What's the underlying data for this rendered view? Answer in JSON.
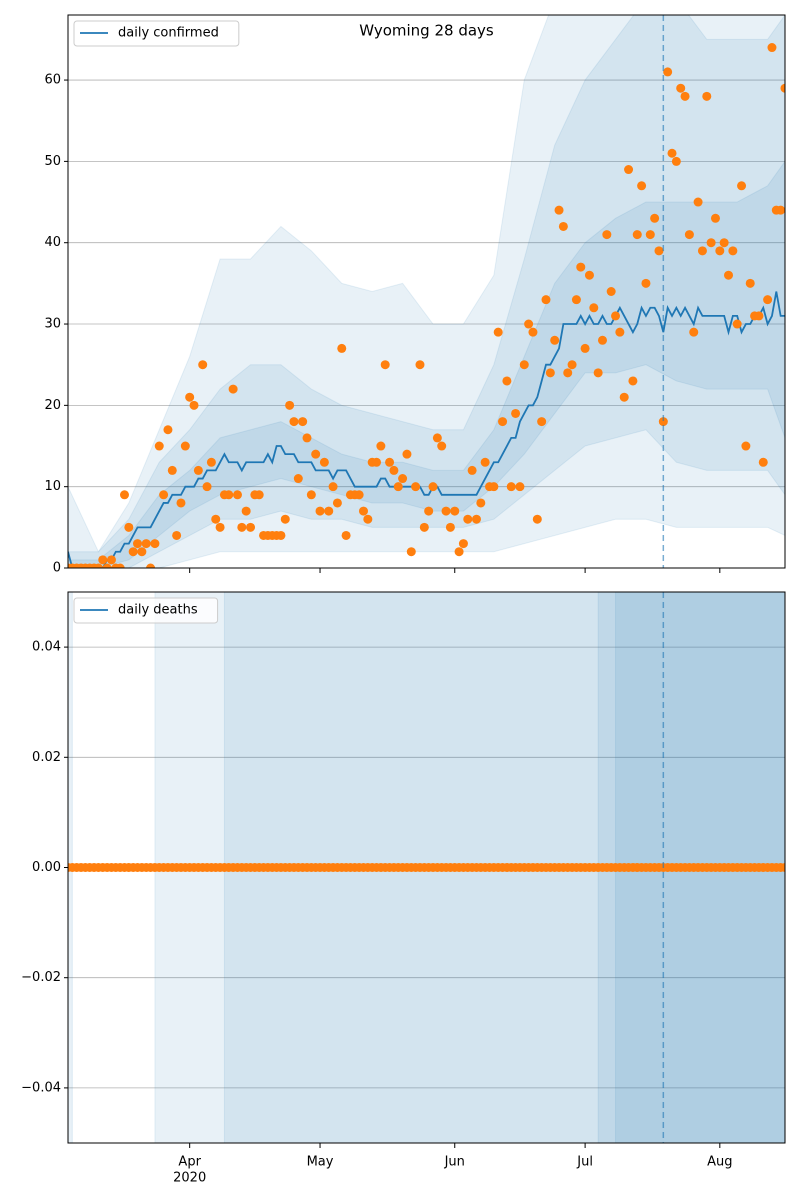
{
  "chart_data": [
    {
      "type": "line",
      "title": "Wyoming 28 days",
      "xlim": [
        0,
        165
      ],
      "ylim": [
        0,
        68
      ],
      "yticks": [
        0,
        10,
        20,
        30,
        40,
        50,
        60
      ],
      "grid": true,
      "legend": "upper left",
      "vline": 137,
      "series": [
        {
          "name": "daily confirmed",
          "color": "#1f77b4",
          "values": [
            2,
            0,
            0,
            0,
            0,
            0,
            0,
            0,
            0,
            1,
            1,
            2,
            2,
            3,
            3,
            4,
            5,
            5,
            5,
            5,
            6,
            7,
            8,
            8,
            9,
            9,
            9,
            10,
            10,
            10,
            11,
            11,
            12,
            12,
            12,
            13,
            14,
            13,
            13,
            13,
            12,
            13,
            13,
            13,
            13,
            13,
            14,
            13,
            15,
            15,
            14,
            14,
            14,
            13,
            13,
            13,
            13,
            12,
            12,
            12,
            12,
            11,
            12,
            12,
            12,
            11,
            10,
            10,
            10,
            10,
            10,
            10,
            11,
            11,
            10,
            10,
            10,
            10,
            10,
            10,
            10,
            10,
            9,
            9,
            10,
            10,
            9,
            9,
            9,
            9,
            9,
            9,
            9,
            9,
            9,
            10,
            11,
            12,
            13,
            13,
            14,
            15,
            16,
            16,
            18,
            19,
            20,
            20,
            21,
            23,
            25,
            25,
            26,
            27,
            30,
            30,
            30,
            30,
            31,
            30,
            31,
            30,
            30,
            31,
            30,
            30,
            31,
            32,
            31,
            30,
            29,
            30,
            32,
            31,
            32,
            32,
            31,
            29,
            32,
            31,
            32,
            31,
            32,
            31,
            30,
            32,
            31,
            31,
            31,
            31,
            31,
            31,
            29,
            31,
            31,
            29,
            30,
            30,
            31,
            31,
            32,
            30,
            31,
            34,
            31,
            31
          ]
        }
      ],
      "points": {
        "color": "#ff7f0e",
        "values": [
          0,
          0,
          0,
          0,
          0,
          0,
          0,
          0,
          1,
          0,
          1,
          0,
          0,
          9,
          5,
          2,
          3,
          2,
          3,
          0,
          3,
          15,
          9,
          17,
          12,
          4,
          8,
          15,
          21,
          20,
          12,
          25,
          10,
          13,
          6,
          5,
          9,
          9,
          22,
          9,
          5,
          7,
          5,
          9,
          9,
          4,
          4,
          4,
          4,
          4,
          6,
          20,
          18,
          11,
          18,
          16,
          9,
          14,
          7,
          13,
          7,
          10,
          8,
          27,
          4,
          9,
          9,
          9,
          7,
          6,
          13,
          13,
          15,
          25,
          13,
          12,
          10,
          11,
          14,
          2,
          10,
          25,
          5,
          7,
          10,
          16,
          15,
          7,
          5,
          7,
          2,
          3,
          6,
          12,
          6,
          8,
          13,
          10,
          10,
          29,
          18,
          23,
          10,
          19,
          10,
          25,
          30,
          29,
          6,
          18,
          33,
          24,
          28,
          44,
          42,
          24,
          25,
          33,
          37,
          27,
          36,
          32,
          24,
          28,
          41,
          34,
          31,
          29,
          21,
          49,
          23,
          41,
          47,
          35,
          41,
          43,
          39,
          18,
          61,
          51,
          50,
          59,
          58,
          41,
          29,
          45,
          39,
          58,
          40,
          43,
          39,
          40,
          36,
          39,
          30,
          47,
          15,
          35,
          31,
          31,
          13,
          33,
          64,
          44,
          44,
          59
        ]
      },
      "band_color": "#1f77b4",
      "bands": [
        {
          "x": [
            0,
            7,
            14,
            21,
            28,
            35,
            42,
            49,
            56,
            63,
            70,
            77,
            84,
            91,
            98,
            105,
            112,
            119,
            126,
            133,
            140,
            147,
            154,
            161,
            165
          ],
          "lower": [
            0,
            0,
            0,
            0,
            1,
            2,
            2,
            2,
            2,
            2,
            2,
            2,
            2,
            2,
            2,
            3,
            4,
            5,
            6,
            6,
            5,
            5,
            5,
            5,
            4
          ],
          "upper": [
            10,
            2,
            8,
            17,
            26,
            38,
            38,
            42,
            39,
            35,
            34,
            35,
            30,
            30,
            36,
            60,
            70,
            70,
            70,
            70,
            70,
            70,
            70,
            70,
            70
          ]
        },
        {
          "x": [
            0,
            7,
            14,
            21,
            28,
            35,
            42,
            49,
            56,
            63,
            70,
            77,
            84,
            91,
            98,
            105,
            112,
            119,
            126,
            133,
            140,
            147,
            154,
            161,
            165
          ],
          "lower": [
            0,
            0,
            0,
            2,
            4,
            6,
            6,
            7,
            6,
            6,
            5,
            5,
            5,
            5,
            6,
            9,
            12,
            15,
            16,
            17,
            13,
            12,
            12,
            12,
            9
          ],
          "upper": [
            2,
            2,
            6,
            13,
            17,
            22,
            25,
            25,
            22,
            20,
            19,
            18,
            17,
            17,
            25,
            38,
            52,
            60,
            65,
            70,
            70,
            65,
            65,
            65,
            68
          ]
        },
        {
          "x": [
            0,
            7,
            14,
            21,
            28,
            35,
            42,
            49,
            56,
            63,
            70,
            77,
            84,
            91,
            98,
            105,
            112,
            119,
            126,
            133,
            140,
            147,
            154,
            161,
            165
          ],
          "lower": [
            0,
            0,
            1,
            4,
            7,
            9,
            10,
            11,
            10,
            9,
            8,
            8,
            7,
            7,
            10,
            14,
            19,
            24,
            24,
            25,
            23,
            22,
            22,
            22,
            16
          ],
          "upper": [
            1,
            1,
            4,
            9,
            12,
            16,
            17,
            18,
            16,
            14,
            13,
            13,
            12,
            12,
            17,
            26,
            35,
            40,
            43,
            45,
            45,
            45,
            45,
            47,
            50
          ]
        }
      ]
    },
    {
      "type": "line",
      "xlim": [
        0,
        165
      ],
      "ylim": [
        -0.05,
        0.05
      ],
      "yticks": [
        {
          "value": -0.04,
          "label": "−0.04"
        },
        {
          "value": -0.02,
          "label": "−0.02"
        },
        {
          "value": 0,
          "label": "0.00"
        },
        {
          "value": 0.02,
          "label": "0.02"
        },
        {
          "value": 0.04,
          "label": "0.04"
        }
      ],
      "xticks": [
        {
          "value": 28,
          "label": "Apr"
        },
        {
          "value": 58,
          "label": "May"
        },
        {
          "value": 89,
          "label": "Jun"
        },
        {
          "value": 119,
          "label": "Jul"
        },
        {
          "value": 150,
          "label": "Aug"
        }
      ],
      "x_sublabel": "2020",
      "grid": true,
      "legend": "upper left",
      "vline": 137,
      "series": [
        {
          "name": "daily deaths",
          "color": "#1f77b4",
          "values": [
            0,
            0,
            0,
            0,
            0,
            0,
            0,
            0,
            0,
            0,
            0,
            0,
            0,
            0,
            0,
            0,
            0,
            0,
            0,
            0,
            0,
            0,
            0,
            0,
            0,
            0,
            0,
            0,
            0,
            0,
            0,
            0,
            0,
            0,
            0,
            0,
            0,
            0,
            0,
            0,
            0,
            0,
            0,
            0,
            0,
            0,
            0,
            0,
            0,
            0,
            0,
            0,
            0,
            0,
            0,
            0,
            0,
            0,
            0,
            0,
            0,
            0,
            0,
            0,
            0,
            0,
            0,
            0,
            0,
            0,
            0,
            0,
            0,
            0,
            0,
            0,
            0,
            0,
            0,
            0,
            0,
            0,
            0,
            0,
            0,
            0,
            0,
            0,
            0,
            0,
            0,
            0,
            0,
            0,
            0,
            0,
            0,
            0,
            0,
            0,
            0,
            0,
            0,
            0,
            0,
            0,
            0,
            0,
            0,
            0,
            0,
            0,
            0,
            0,
            0,
            0,
            0,
            0,
            0,
            0,
            0,
            0,
            0,
            0,
            0,
            0,
            0,
            0,
            0,
            0,
            0,
            0,
            0,
            0,
            0,
            0,
            0,
            0,
            0,
            0,
            0,
            0,
            0,
            0,
            0,
            0,
            0,
            0,
            0,
            0,
            0,
            0,
            0,
            0,
            0,
            0,
            0,
            0,
            0,
            0,
            0,
            0,
            0,
            0,
            0,
            0
          ]
        }
      ],
      "points": {
        "color": "#ff7f0e",
        "values": [
          0,
          0,
          0,
          0,
          0,
          0,
          0,
          0,
          0,
          0,
          0,
          0,
          0,
          0,
          0,
          0,
          0,
          0,
          0,
          0,
          0,
          0,
          0,
          0,
          0,
          0,
          0,
          0,
          0,
          0,
          0,
          0,
          0,
          0,
          0,
          0,
          0,
          0,
          0,
          0,
          0,
          0,
          0,
          0,
          0,
          0,
          0,
          0,
          0,
          0,
          0,
          0,
          0,
          0,
          0,
          0,
          0,
          0,
          0,
          0,
          0,
          0,
          0,
          0,
          0,
          0,
          0,
          0,
          0,
          0,
          0,
          0,
          0,
          0,
          0,
          0,
          0,
          0,
          0,
          0,
          0,
          0,
          0,
          0,
          0,
          0,
          0,
          0,
          0,
          0,
          0,
          0,
          0,
          0,
          0,
          0,
          0,
          0,
          0,
          0,
          0,
          0,
          0,
          0,
          0,
          0,
          0,
          0,
          0,
          0,
          0,
          0,
          0,
          0,
          0,
          0,
          0,
          0,
          0,
          0,
          0,
          0,
          0,
          0,
          0,
          0,
          0,
          0,
          0,
          0,
          0,
          0,
          0,
          0,
          0,
          0,
          0,
          0,
          0,
          0,
          0,
          0,
          0,
          0,
          0,
          0,
          0,
          0,
          0,
          0,
          0,
          0,
          0,
          0,
          0,
          0,
          0,
          0,
          0,
          0,
          0,
          0,
          0,
          0,
          0,
          0
        ]
      },
      "band_color": "#1f77b4",
      "spans": [
        [
          0,
          1
        ],
        [
          20,
          165
        ],
        [
          36,
          165
        ],
        [
          122,
          165
        ],
        [
          126,
          165
        ]
      ]
    }
  ]
}
